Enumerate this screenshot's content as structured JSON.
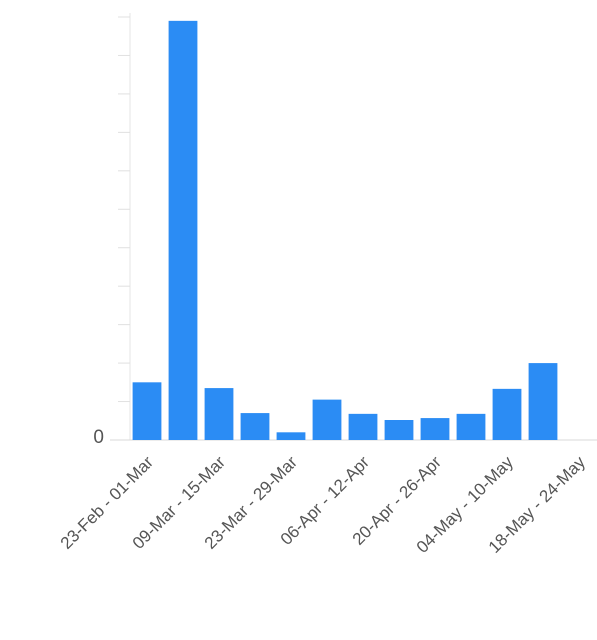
{
  "chart_data": {
    "type": "bar",
    "categories": [
      "23-Feb - 01-Mar",
      null,
      "09-Mar - 15-Mar",
      null,
      "23-Mar - 29-Mar",
      null,
      "06-Apr - 12-Apr",
      null,
      "20-Apr - 26-Apr",
      null,
      "04-May - 10-May",
      null,
      "18-May - 24-May"
    ],
    "values": [
      1.5,
      10.9,
      1.35,
      0.7,
      0.2,
      1.05,
      0.68,
      0.52,
      0.57,
      0.68,
      1.33,
      2.0,
      0
    ],
    "color": "#2b8cf4",
    "ylim": [
      0,
      11
    ],
    "yticks": [
      0
    ],
    "minor_yticks": [
      1,
      2,
      3,
      4,
      5,
      6,
      7,
      8,
      9,
      10,
      11
    ]
  }
}
